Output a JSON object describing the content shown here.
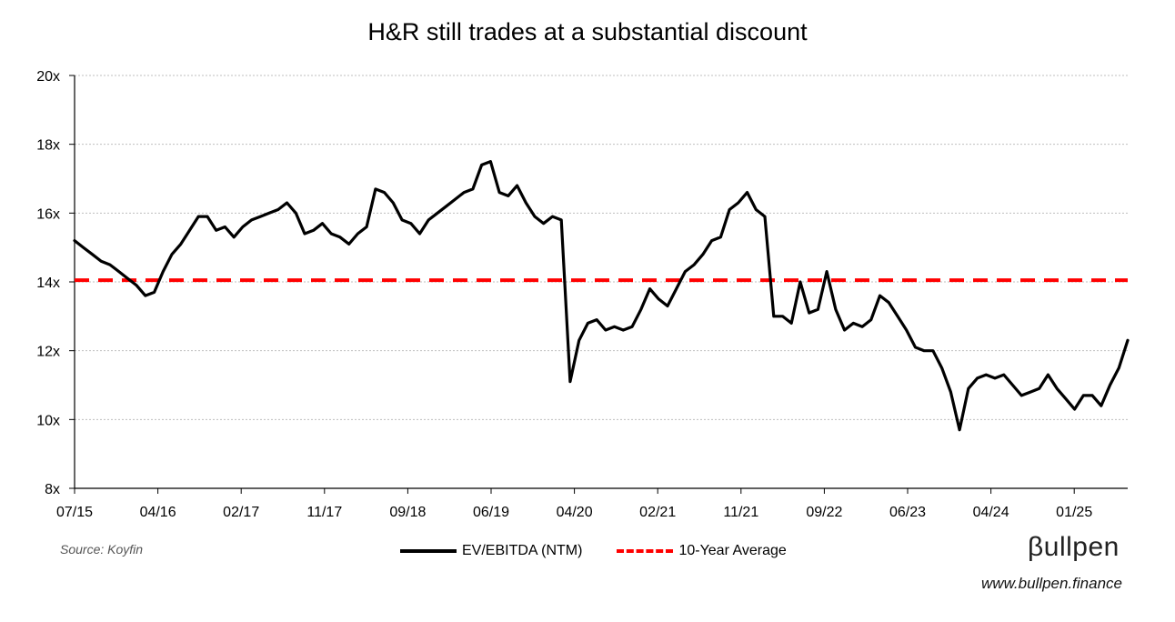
{
  "chart_data": {
    "type": "line",
    "title": "H&R still trades at a substantial discount",
    "xlabel": "",
    "ylabel": "",
    "x_ticks": [
      "07/15",
      "04/16",
      "02/17",
      "11/17",
      "09/18",
      "06/19",
      "04/20",
      "02/21",
      "11/21",
      "09/22",
      "06/23",
      "04/24",
      "01/25"
    ],
    "y_ticks": [
      "8x",
      "10x",
      "12x",
      "14x",
      "16x",
      "18x",
      "20x"
    ],
    "ylim": [
      8,
      20
    ],
    "grid": "horizontal dotted",
    "legend_placement": "bottom",
    "series": [
      {
        "name": "EV/EBITDA (NTM)",
        "color": "#000000",
        "style": "solid",
        "points": [
          [
            "2015-07",
            15.2
          ],
          [
            "2015-08",
            15.0
          ],
          [
            "2015-09",
            14.8
          ],
          [
            "2015-10",
            14.6
          ],
          [
            "2015-11",
            14.5
          ],
          [
            "2015-12",
            14.3
          ],
          [
            "2016-01",
            14.1
          ],
          [
            "2016-02",
            13.9
          ],
          [
            "2016-03",
            13.6
          ],
          [
            "2016-04",
            13.7
          ],
          [
            "2016-05",
            14.3
          ],
          [
            "2016-06",
            14.8
          ],
          [
            "2016-07",
            15.1
          ],
          [
            "2016-08",
            15.5
          ],
          [
            "2016-09",
            15.9
          ],
          [
            "2016-10",
            15.9
          ],
          [
            "2016-11",
            15.5
          ],
          [
            "2016-12",
            15.6
          ],
          [
            "2017-01",
            15.3
          ],
          [
            "2017-02",
            15.6
          ],
          [
            "2017-03",
            15.8
          ],
          [
            "2017-04",
            15.9
          ],
          [
            "2017-05",
            16.0
          ],
          [
            "2017-06",
            16.1
          ],
          [
            "2017-07",
            16.3
          ],
          [
            "2017-08",
            16.0
          ],
          [
            "2017-09",
            15.4
          ],
          [
            "2017-10",
            15.5
          ],
          [
            "2017-11",
            15.7
          ],
          [
            "2017-12",
            15.4
          ],
          [
            "2018-01",
            15.3
          ],
          [
            "2018-02",
            15.1
          ],
          [
            "2018-03",
            15.4
          ],
          [
            "2018-04",
            15.6
          ],
          [
            "2018-05",
            16.7
          ],
          [
            "2018-06",
            16.6
          ],
          [
            "2018-07",
            16.3
          ],
          [
            "2018-08",
            15.8
          ],
          [
            "2018-09",
            15.7
          ],
          [
            "2018-10",
            15.4
          ],
          [
            "2018-11",
            15.8
          ],
          [
            "2018-12",
            16.0
          ],
          [
            "2019-01",
            16.2
          ],
          [
            "2019-02",
            16.4
          ],
          [
            "2019-03",
            16.6
          ],
          [
            "2019-04",
            16.7
          ],
          [
            "2019-05",
            17.4
          ],
          [
            "2019-06",
            17.5
          ],
          [
            "2019-07",
            16.6
          ],
          [
            "2019-08",
            16.5
          ],
          [
            "2019-09",
            16.8
          ],
          [
            "2019-10",
            16.3
          ],
          [
            "2019-11",
            15.9
          ],
          [
            "2019-12",
            15.7
          ],
          [
            "2020-01",
            15.9
          ],
          [
            "2020-02",
            15.8
          ],
          [
            "2020-03",
            11.1
          ],
          [
            "2020-04",
            12.3
          ],
          [
            "2020-05",
            12.8
          ],
          [
            "2020-06",
            12.9
          ],
          [
            "2020-07",
            12.6
          ],
          [
            "2020-08",
            12.7
          ],
          [
            "2020-09",
            12.6
          ],
          [
            "2020-10",
            12.7
          ],
          [
            "2020-11",
            13.2
          ],
          [
            "2020-12",
            13.8
          ],
          [
            "2021-01",
            13.5
          ],
          [
            "2021-02",
            13.3
          ],
          [
            "2021-03",
            13.8
          ],
          [
            "2021-04",
            14.3
          ],
          [
            "2021-05",
            14.5
          ],
          [
            "2021-06",
            14.8
          ],
          [
            "2021-07",
            15.2
          ],
          [
            "2021-08",
            15.3
          ],
          [
            "2021-09",
            16.1
          ],
          [
            "2021-10",
            16.3
          ],
          [
            "2021-11",
            16.6
          ],
          [
            "2021-12",
            16.1
          ],
          [
            "2022-01",
            15.9
          ],
          [
            "2022-02",
            13.0
          ],
          [
            "2022-03",
            13.0
          ],
          [
            "2022-04",
            12.8
          ],
          [
            "2022-05",
            14.0
          ],
          [
            "2022-06",
            13.1
          ],
          [
            "2022-07",
            13.2
          ],
          [
            "2022-08",
            14.3
          ],
          [
            "2022-09",
            13.2
          ],
          [
            "2022-10",
            12.6
          ],
          [
            "2022-11",
            12.8
          ],
          [
            "2022-12",
            12.7
          ],
          [
            "2023-01",
            12.9
          ],
          [
            "2023-02",
            13.6
          ],
          [
            "2023-03",
            13.4
          ],
          [
            "2023-04",
            13.0
          ],
          [
            "2023-05",
            12.6
          ],
          [
            "2023-06",
            12.1
          ],
          [
            "2023-07",
            12.0
          ],
          [
            "2023-08",
            12.0
          ],
          [
            "2023-09",
            11.5
          ],
          [
            "2023-10",
            10.8
          ],
          [
            "2023-11",
            9.7
          ],
          [
            "2023-12",
            10.9
          ],
          [
            "2024-01",
            11.2
          ],
          [
            "2024-02",
            11.3
          ],
          [
            "2024-03",
            11.2
          ],
          [
            "2024-04",
            11.3
          ],
          [
            "2024-05",
            11.0
          ],
          [
            "2024-06",
            10.7
          ],
          [
            "2024-07",
            10.8
          ],
          [
            "2024-08",
            10.9
          ],
          [
            "2024-09",
            11.3
          ],
          [
            "2024-10",
            10.9
          ],
          [
            "2024-11",
            10.6
          ],
          [
            "2024-12",
            10.3
          ],
          [
            "2025-01",
            10.7
          ],
          [
            "2025-02",
            10.7
          ],
          [
            "2025-03",
            10.4
          ],
          [
            "2025-04",
            11.0
          ],
          [
            "2025-05",
            11.5
          ],
          [
            "2025-06",
            12.3
          ]
        ]
      },
      {
        "name": "10-Year Average",
        "color": "#ff0000",
        "style": "dashed",
        "value": 14.05
      }
    ]
  },
  "footer": {
    "source": "Source: Koyfin",
    "brand": "βullpen",
    "url": "www.bullpen.finance"
  }
}
